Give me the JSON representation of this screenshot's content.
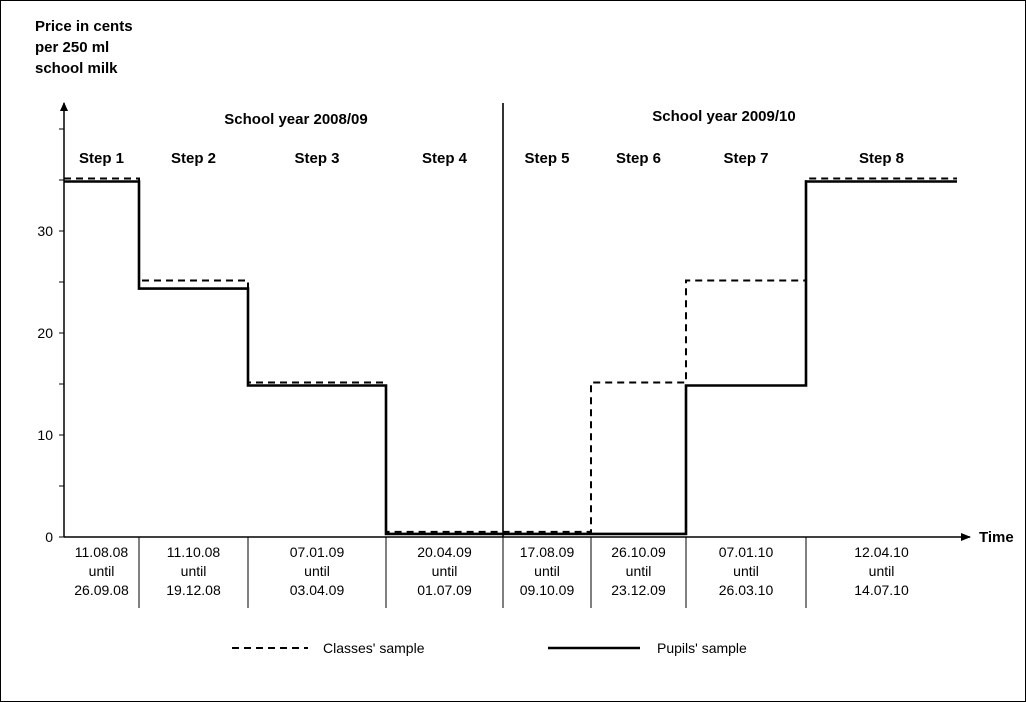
{
  "chart_data": {
    "type": "line",
    "ylabel_lines": [
      "Price in cents",
      "per 250 ml",
      "school milk"
    ],
    "xlabel": "Time",
    "ylim": [
      0,
      40
    ],
    "yticks": [
      0,
      10,
      20,
      30
    ],
    "step_labels": [
      "Step 1",
      "Step 2",
      "Step 3",
      "Step 4",
      "Step 5",
      "Step 6",
      "Step 7",
      "Step 8"
    ],
    "school_years": [
      "School year 2008/09",
      "School year 2009/10"
    ],
    "periods": [
      [
        "11.08.08",
        "until",
        "26.09.08"
      ],
      [
        "11.10.08",
        "until",
        "19.12.08"
      ],
      [
        "07.01.09",
        "until",
        "03.04.09"
      ],
      [
        "20.04.09",
        "until",
        "01.07.09"
      ],
      [
        "17.08.09",
        "until",
        "09.10.09"
      ],
      [
        "26.10.09",
        "until",
        "23.12.09"
      ],
      [
        "07.01.10",
        "until",
        "26.03.10"
      ],
      [
        "12.04.10",
        "until",
        "14.07.10"
      ]
    ],
    "series": [
      {
        "name": "Classes' sample",
        "style": "dashed",
        "values": [
          35,
          25,
          15,
          0.5,
          0.5,
          15,
          25,
          35
        ]
      },
      {
        "name": "Pupils' sample",
        "style": "solid",
        "values": [
          35,
          24.5,
          15,
          0.3,
          0.3,
          0.3,
          15,
          35
        ]
      }
    ],
    "grid": false,
    "legend_position": "bottom"
  }
}
